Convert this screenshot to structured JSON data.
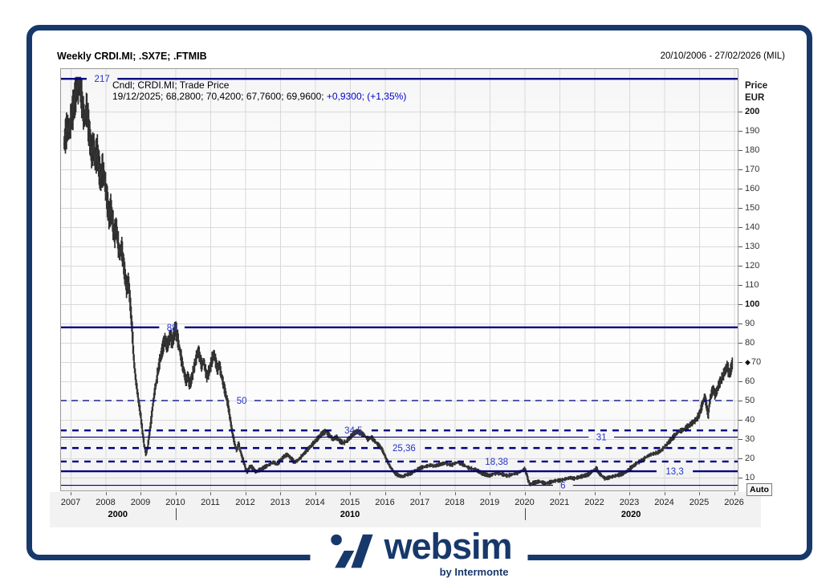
{
  "window": {
    "title": "Weekly CRDI.MI; .SX7E; .FTMIB",
    "date_range": "20/10/2006 - 27/02/2026 (MIL)"
  },
  "legend": {
    "line1": "Cndl; CRDI.MI; Trade Price",
    "line2_quote": "19/12/2025; 68,2800; 70,4200; 67,7600; 69,9600; ",
    "line2_change": "+0,9300; (+1,35%)"
  },
  "y_axis": {
    "unit_line1": "Price",
    "unit_line2": "EUR",
    "ticks": [
      200,
      190,
      180,
      170,
      160,
      150,
      140,
      130,
      120,
      110,
      100,
      90,
      80,
      70,
      60,
      50,
      40,
      30,
      20,
      10
    ],
    "bold_ticks": [
      200,
      100
    ],
    "marker_price": 70,
    "auto_button": "Auto"
  },
  "x_axis": {
    "years": [
      2007,
      2008,
      2009,
      2010,
      2011,
      2012,
      2013,
      2014,
      2015,
      2016,
      2017,
      2018,
      2019,
      2020,
      2021,
      2022,
      2023,
      2024,
      2025,
      2026
    ],
    "decade_labels": [
      {
        "label": "2000",
        "center_year": 2008.35
      },
      {
        "label": "2010",
        "center_year": 2015.0
      },
      {
        "label": "2020",
        "center_year": 2023.05
      }
    ],
    "decade_tick_years": [
      2010,
      2020
    ]
  },
  "levels": [
    {
      "price": 217,
      "label": "217",
      "line": "solid-thick",
      "label_year": 2007.9
    },
    {
      "price": 88,
      "label": "88",
      "line": "solid-thick",
      "label_year": 2009.9
    },
    {
      "price": 50,
      "label": "50",
      "line": "dashed-thin",
      "label_year": 2011.9
    },
    {
      "price": 34.5,
      "label": "34,5",
      "line": "dashed-thick",
      "label_year": 2015.1
    },
    {
      "price": 31,
      "label": "31",
      "line": "solid-thin",
      "label_year": 2022.2
    },
    {
      "price": 25.36,
      "label": "25,36",
      "line": "dashed-thick",
      "label_year": 2016.55
    },
    {
      "price": 18.38,
      "label": "18,38",
      "line": "dashed-thick",
      "label_year": 2019.2
    },
    {
      "price": 13.3,
      "label": "13,3",
      "line": "solid-thick",
      "label_year": 2024.3
    },
    {
      "price": 6,
      "label": "6",
      "line": "solid-thin",
      "label_year": 2021.1
    }
  ],
  "colors": {
    "brand_navy": "#17386b",
    "level_line": "#000080",
    "level_label": "#2233cc",
    "quote_change": "#0000cd",
    "candle": "#2d2d2d",
    "grid": "#d9d9d9",
    "plot_border": "#999999"
  },
  "logo": {
    "name": "websim",
    "byline": "by Intermonte"
  },
  "chart_data": {
    "type": "candlestick",
    "symbol": "CRDI.MI",
    "interval": "weekly",
    "title": "Weekly CRDI.MI; .SX7E; .FTMIB",
    "x_unit": "decimal_year",
    "price_unit": "EUR",
    "xlim": [
      2006.7,
      2026.13
    ],
    "ylim": [
      2,
      222
    ],
    "grid": true,
    "series": [
      {
        "name": "CRDI.MI Trade Price (weekly close, approximate)",
        "points": [
          [
            2006.8,
            183
          ],
          [
            2006.85,
            188
          ],
          [
            2006.9,
            192
          ],
          [
            2006.95,
            190
          ],
          [
            2007.0,
            196
          ],
          [
            2007.05,
            200
          ],
          [
            2007.1,
            205
          ],
          [
            2007.15,
            210
          ],
          [
            2007.2,
            214
          ],
          [
            2007.25,
            217
          ],
          [
            2007.3,
            208
          ],
          [
            2007.35,
            200
          ],
          [
            2007.4,
            196
          ],
          [
            2007.45,
            202
          ],
          [
            2007.5,
            193
          ],
          [
            2007.55,
            185
          ],
          [
            2007.6,
            178
          ],
          [
            2007.65,
            183
          ],
          [
            2007.7,
            174
          ],
          [
            2007.75,
            180
          ],
          [
            2007.8,
            172
          ],
          [
            2007.85,
            165
          ],
          [
            2007.9,
            170
          ],
          [
            2007.95,
            167
          ],
          [
            2008.0,
            160
          ],
          [
            2008.05,
            152
          ],
          [
            2008.1,
            145
          ],
          [
            2008.15,
            150
          ],
          [
            2008.2,
            142
          ],
          [
            2008.25,
            136
          ],
          [
            2008.3,
            140
          ],
          [
            2008.35,
            132
          ],
          [
            2008.4,
            126
          ],
          [
            2008.45,
            130
          ],
          [
            2008.5,
            122
          ],
          [
            2008.55,
            115
          ],
          [
            2008.6,
            108
          ],
          [
            2008.65,
            112
          ],
          [
            2008.7,
            100
          ],
          [
            2008.75,
            88
          ],
          [
            2008.8,
            72
          ],
          [
            2008.85,
            62
          ],
          [
            2008.9,
            55
          ],
          [
            2008.95,
            48
          ],
          [
            2009.0,
            42
          ],
          [
            2009.05,
            34
          ],
          [
            2009.1,
            27
          ],
          [
            2009.15,
            22
          ],
          [
            2009.2,
            26
          ],
          [
            2009.25,
            33
          ],
          [
            2009.3,
            40
          ],
          [
            2009.35,
            48
          ],
          [
            2009.4,
            55
          ],
          [
            2009.45,
            60
          ],
          [
            2009.5,
            66
          ],
          [
            2009.55,
            71
          ],
          [
            2009.6,
            75
          ],
          [
            2009.65,
            79
          ],
          [
            2009.7,
            82
          ],
          [
            2009.75,
            78
          ],
          [
            2009.8,
            81
          ],
          [
            2009.85,
            84
          ],
          [
            2009.9,
            80
          ],
          [
            2009.95,
            84
          ],
          [
            2010.0,
            88
          ],
          [
            2010.05,
            83
          ],
          [
            2010.1,
            78
          ],
          [
            2010.15,
            73
          ],
          [
            2010.2,
            68
          ],
          [
            2010.25,
            64
          ],
          [
            2010.3,
            60
          ],
          [
            2010.35,
            63
          ],
          [
            2010.4,
            58
          ],
          [
            2010.45,
            61
          ],
          [
            2010.5,
            65
          ],
          [
            2010.55,
            69
          ],
          [
            2010.6,
            73
          ],
          [
            2010.65,
            76
          ],
          [
            2010.7,
            72
          ],
          [
            2010.75,
            68
          ],
          [
            2010.8,
            71
          ],
          [
            2010.85,
            66
          ],
          [
            2010.9,
            62
          ],
          [
            2010.95,
            65
          ],
          [
            2011.0,
            68
          ],
          [
            2011.05,
            72
          ],
          [
            2011.1,
            74
          ],
          [
            2011.15,
            70
          ],
          [
            2011.2,
            66
          ],
          [
            2011.25,
            69
          ],
          [
            2011.3,
            64
          ],
          [
            2011.35,
            60
          ],
          [
            2011.4,
            56
          ],
          [
            2011.45,
            52
          ],
          [
            2011.5,
            48
          ],
          [
            2011.55,
            42
          ],
          [
            2011.6,
            36
          ],
          [
            2011.65,
            31
          ],
          [
            2011.7,
            27
          ],
          [
            2011.75,
            24
          ],
          [
            2011.8,
            28
          ],
          [
            2011.85,
            24
          ],
          [
            2011.9,
            21
          ],
          [
            2011.95,
            18
          ],
          [
            2012.0,
            15
          ],
          [
            2012.05,
            13
          ],
          [
            2012.1,
            15
          ],
          [
            2012.15,
            16
          ],
          [
            2012.2,
            15
          ],
          [
            2012.25,
            14
          ],
          [
            2012.3,
            13
          ],
          [
            2012.4,
            14
          ],
          [
            2012.5,
            15
          ],
          [
            2012.6,
            16
          ],
          [
            2012.7,
            17
          ],
          [
            2012.8,
            18
          ],
          [
            2012.9,
            17
          ],
          [
            2013.0,
            19
          ],
          [
            2013.1,
            21
          ],
          [
            2013.2,
            22
          ],
          [
            2013.3,
            20
          ],
          [
            2013.4,
            18
          ],
          [
            2013.5,
            19
          ],
          [
            2013.6,
            21
          ],
          [
            2013.7,
            23
          ],
          [
            2013.8,
            25
          ],
          [
            2013.9,
            27
          ],
          [
            2014.0,
            29
          ],
          [
            2014.1,
            31
          ],
          [
            2014.2,
            33
          ],
          [
            2014.3,
            34
          ],
          [
            2014.4,
            32
          ],
          [
            2014.5,
            30
          ],
          [
            2014.6,
            31
          ],
          [
            2014.7,
            29
          ],
          [
            2014.8,
            28
          ],
          [
            2014.9,
            29
          ],
          [
            2015.0,
            31
          ],
          [
            2015.1,
            33
          ],
          [
            2015.2,
            34
          ],
          [
            2015.3,
            33
          ],
          [
            2015.4,
            32
          ],
          [
            2015.5,
            30
          ],
          [
            2015.6,
            31
          ],
          [
            2015.7,
            29
          ],
          [
            2015.8,
            27
          ],
          [
            2015.9,
            25
          ],
          [
            2016.0,
            21
          ],
          [
            2016.1,
            17
          ],
          [
            2016.2,
            14
          ],
          [
            2016.3,
            12
          ],
          [
            2016.4,
            11
          ],
          [
            2016.5,
            10.5
          ],
          [
            2016.6,
            11.5
          ],
          [
            2016.7,
            12
          ],
          [
            2016.8,
            13
          ],
          [
            2016.9,
            14
          ],
          [
            2017.0,
            15
          ],
          [
            2017.1,
            15.5
          ],
          [
            2017.2,
            16
          ],
          [
            2017.3,
            16.5
          ],
          [
            2017.4,
            16
          ],
          [
            2017.5,
            16.5
          ],
          [
            2017.6,
            17
          ],
          [
            2017.7,
            17.5
          ],
          [
            2017.8,
            17
          ],
          [
            2017.9,
            16.5
          ],
          [
            2018.0,
            17.5
          ],
          [
            2018.1,
            18
          ],
          [
            2018.2,
            17
          ],
          [
            2018.3,
            16
          ],
          [
            2018.4,
            15
          ],
          [
            2018.5,
            14.5
          ],
          [
            2018.6,
            14
          ],
          [
            2018.7,
            13
          ],
          [
            2018.8,
            12
          ],
          [
            2018.9,
            11.5
          ],
          [
            2019.0,
            11
          ],
          [
            2019.1,
            12
          ],
          [
            2019.2,
            12.5
          ],
          [
            2019.3,
            12
          ],
          [
            2019.4,
            11.5
          ],
          [
            2019.5,
            11
          ],
          [
            2019.6,
            11.5
          ],
          [
            2019.7,
            12
          ],
          [
            2019.8,
            12.5
          ],
          [
            2019.9,
            13.5
          ],
          [
            2020.0,
            14.5
          ],
          [
            2020.05,
            12
          ],
          [
            2020.1,
            8.5
          ],
          [
            2020.15,
            6.5
          ],
          [
            2020.2,
            7
          ],
          [
            2020.3,
            7.5
          ],
          [
            2020.4,
            8
          ],
          [
            2020.5,
            7.5
          ],
          [
            2020.6,
            7
          ],
          [
            2020.7,
            7.5
          ],
          [
            2020.8,
            8
          ],
          [
            2020.9,
            8.5
          ],
          [
            2021.0,
            8.5
          ],
          [
            2021.1,
            9
          ],
          [
            2021.2,
            9.5
          ],
          [
            2021.3,
            10
          ],
          [
            2021.4,
            9.5
          ],
          [
            2021.5,
            10
          ],
          [
            2021.6,
            10.5
          ],
          [
            2021.7,
            11
          ],
          [
            2021.8,
            11.5
          ],
          [
            2021.9,
            13
          ],
          [
            2022.0,
            14
          ],
          [
            2022.05,
            15
          ],
          [
            2022.1,
            13
          ],
          [
            2022.2,
            11
          ],
          [
            2022.3,
            9.5
          ],
          [
            2022.4,
            10
          ],
          [
            2022.5,
            10.5
          ],
          [
            2022.6,
            11
          ],
          [
            2022.7,
            11.5
          ],
          [
            2022.8,
            12
          ],
          [
            2022.9,
            13
          ],
          [
            2023.0,
            14.5
          ],
          [
            2023.1,
            16
          ],
          [
            2023.2,
            17.5
          ],
          [
            2023.3,
            18.5
          ],
          [
            2023.4,
            19.5
          ],
          [
            2023.5,
            21
          ],
          [
            2023.6,
            22
          ],
          [
            2023.7,
            22.5
          ],
          [
            2023.8,
            23
          ],
          [
            2023.9,
            24
          ],
          [
            2024.0,
            26
          ],
          [
            2024.1,
            28
          ],
          [
            2024.2,
            30
          ],
          [
            2024.3,
            32
          ],
          [
            2024.4,
            34
          ],
          [
            2024.5,
            34.5
          ],
          [
            2024.6,
            35.5
          ],
          [
            2024.7,
            37
          ],
          [
            2024.8,
            38.5
          ],
          [
            2024.9,
            40
          ],
          [
            2025.0,
            43
          ],
          [
            2025.05,
            46
          ],
          [
            2025.1,
            49
          ],
          [
            2025.15,
            52
          ],
          [
            2025.2,
            48
          ],
          [
            2025.25,
            42
          ],
          [
            2025.3,
            50
          ],
          [
            2025.35,
            54
          ],
          [
            2025.4,
            56
          ],
          [
            2025.45,
            53
          ],
          [
            2025.5,
            55
          ],
          [
            2025.55,
            58
          ],
          [
            2025.6,
            60
          ],
          [
            2025.65,
            62
          ],
          [
            2025.7,
            64
          ],
          [
            2025.75,
            66
          ],
          [
            2025.8,
            68
          ],
          [
            2025.85,
            64
          ],
          [
            2025.9,
            66
          ],
          [
            2025.95,
            70
          ]
        ]
      }
    ],
    "annotations_horizontal_levels": [
      217,
      88,
      50,
      34.5,
      31,
      25.36,
      18.38,
      13.3,
      6
    ],
    "legend_position": "top-left-inside"
  }
}
